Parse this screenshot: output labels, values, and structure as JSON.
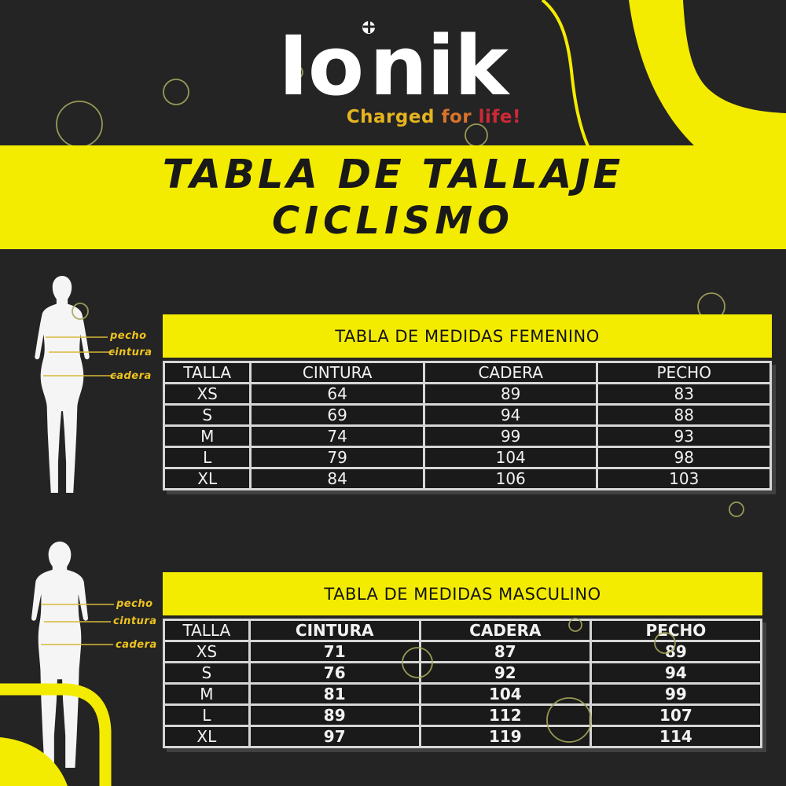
{
  "logo": {
    "part1": "I",
    "part2": "o",
    "part3": "nik",
    "plus": "+",
    "tagline": {
      "word1": "Charged",
      "word2": "for",
      "word3": "life!"
    }
  },
  "title": {
    "line1": "TABLA DE TALLAJE",
    "line2": "CICLISMO"
  },
  "sections": {
    "femenino": {
      "labels": {
        "pecho": "pecho",
        "cintura": "cintura",
        "cadera": "cadera"
      },
      "table": {
        "title": "TABLA DE MEDIDAS FEMENINO",
        "headers": [
          "TALLA",
          "CINTURA",
          "CADERA",
          "PECHO"
        ],
        "rows": [
          [
            "XS",
            "64",
            "89",
            "83"
          ],
          [
            "S",
            "69",
            "94",
            "88"
          ],
          [
            "M",
            "74",
            "99",
            "93"
          ],
          [
            "L",
            "79",
            "104",
            "98"
          ],
          [
            "XL",
            "84",
            "106",
            "103"
          ]
        ]
      }
    },
    "masculino": {
      "labels": {
        "pecho": "pecho",
        "cintura": "cintura",
        "cadera": "cadera"
      },
      "table": {
        "title": "TABLA DE MEDIDAS MASCULINO",
        "headers": [
          "TALLA",
          "CINTURA",
          "CADERA",
          "PECHO"
        ],
        "rows": [
          [
            "XS",
            "71",
            "87",
            "89"
          ],
          [
            "S",
            "76",
            "92",
            "94"
          ],
          [
            "M",
            "81",
            "104",
            "99"
          ],
          [
            "L",
            "89",
            "112",
            "107"
          ],
          [
            "XL",
            "97",
            "119",
            "114"
          ]
        ]
      }
    }
  },
  "colors": {
    "accent_yellow": "#F4EC00",
    "label_yellow": "#EFC31F",
    "tagline_yellow": "#E5B51F",
    "tagline_orange": "#D9732B",
    "tagline_red": "#CE2936",
    "circle_stroke": "#A5A55C",
    "line_yellow": "#D8B838"
  }
}
